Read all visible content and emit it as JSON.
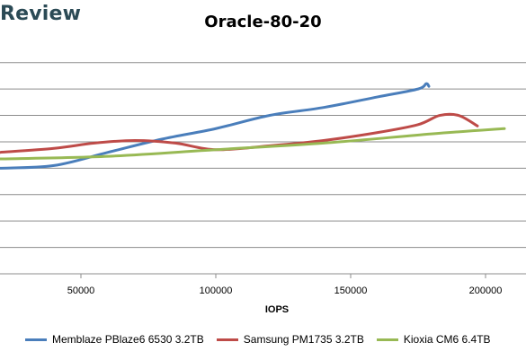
{
  "brand": "Review",
  "chart_data": {
    "type": "line",
    "title": "Oracle-80-20",
    "xlabel": "IOPS",
    "ylabel": "",
    "xlim": [
      20000,
      215000
    ],
    "ylim": [
      0,
      8.5
    ],
    "xticks": [
      50000,
      100000,
      150000,
      200000
    ],
    "grid": true,
    "legend_position": "bottom",
    "series": [
      {
        "name": "Memblaze PBlaze6 6530 3.2TB",
        "color": "#4a7ebb",
        "x": [
          20000,
          40000,
          60000,
          80000,
          100000,
          120000,
          140000,
          160000,
          175000,
          178000,
          179000
        ],
        "y": [
          4.0,
          4.1,
          4.6,
          5.1,
          5.5,
          6.0,
          6.3,
          6.7,
          7.0,
          7.2,
          7.1
        ]
      },
      {
        "name": "Samsung PM1735 3.2TB",
        "color": "#be4b48",
        "x": [
          20000,
          40000,
          55000,
          70000,
          85000,
          100000,
          120000,
          140000,
          160000,
          175000,
          183000,
          190000,
          197000
        ],
        "y": [
          4.6,
          4.75,
          4.95,
          5.05,
          4.95,
          4.7,
          4.85,
          5.05,
          5.35,
          5.65,
          6.0,
          6.0,
          5.6
        ]
      },
      {
        "name": "Kioxia CM6 6.4TB",
        "color": "#98b954",
        "x": [
          20000,
          60000,
          100000,
          140000,
          180000,
          207000
        ],
        "y": [
          4.35,
          4.45,
          4.7,
          4.95,
          5.3,
          5.5
        ]
      }
    ]
  }
}
